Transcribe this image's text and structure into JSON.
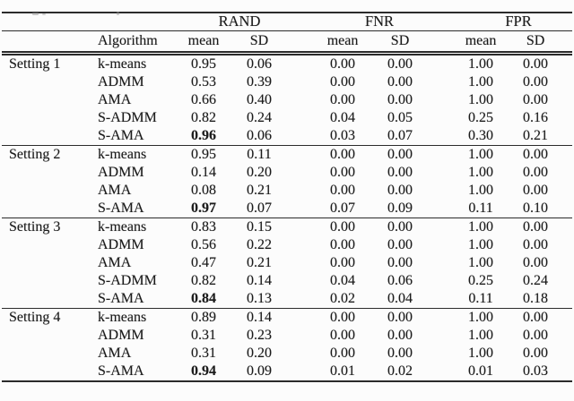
{
  "colors": {
    "background": "#fcfcfc",
    "text": "#1b1b1b",
    "rule": "#2b2b2b"
  },
  "table": {
    "col_groups": [
      {
        "label": "RAND"
      },
      {
        "label": "FNR"
      },
      {
        "label": "FPR"
      }
    ],
    "sub_headers": {
      "algorithm": "Algorithm",
      "mean": "mean",
      "sd": "SD"
    },
    "settings": [
      {
        "label": "Setting 1",
        "rows": [
          {
            "algorithm": "k-means",
            "values": [
              "0.95",
              "0.06",
              "0.00",
              "0.00",
              "1.00",
              "0.00"
            ],
            "bold": []
          },
          {
            "algorithm": "ADMM",
            "values": [
              "0.53",
              "0.39",
              "0.00",
              "0.00",
              "1.00",
              "0.00"
            ],
            "bold": []
          },
          {
            "algorithm": "AMA",
            "values": [
              "0.66",
              "0.40",
              "0.00",
              "0.00",
              "1.00",
              "0.00"
            ],
            "bold": []
          },
          {
            "algorithm": "S-ADMM",
            "values": [
              "0.82",
              "0.24",
              "0.04",
              "0.05",
              "0.25",
              "0.16"
            ],
            "bold": []
          },
          {
            "algorithm": "S-AMA",
            "values": [
              "0.96",
              "0.06",
              "0.03",
              "0.07",
              "0.30",
              "0.21"
            ],
            "bold": [
              0
            ]
          }
        ]
      },
      {
        "label": "Setting 2",
        "rows": [
          {
            "algorithm": "k-means",
            "values": [
              "0.95",
              "0.11",
              "0.00",
              "0.00",
              "1.00",
              "0.00"
            ],
            "bold": []
          },
          {
            "algorithm": "ADMM",
            "values": [
              "0.14",
              "0.20",
              "0.00",
              "0.00",
              "1.00",
              "0.00"
            ],
            "bold": []
          },
          {
            "algorithm": "AMA",
            "values": [
              "0.08",
              "0.21",
              "0.00",
              "0.00",
              "1.00",
              "0.00"
            ],
            "bold": []
          },
          {
            "algorithm": "S-AMA",
            "values": [
              "0.97",
              "0.07",
              "0.07",
              "0.09",
              "0.11",
              "0.10"
            ],
            "bold": [
              0
            ]
          }
        ]
      },
      {
        "label": "Setting 3",
        "rows": [
          {
            "algorithm": "k-means",
            "values": [
              "0.83",
              "0.15",
              "0.00",
              "0.00",
              "1.00",
              "0.00"
            ],
            "bold": []
          },
          {
            "algorithm": "ADMM",
            "values": [
              "0.56",
              "0.22",
              "0.00",
              "0.00",
              "1.00",
              "0.00"
            ],
            "bold": []
          },
          {
            "algorithm": "AMA",
            "values": [
              "0.47",
              "0.21",
              "0.00",
              "0.00",
              "1.00",
              "0.00"
            ],
            "bold": []
          },
          {
            "algorithm": "S-ADMM",
            "values": [
              "0.82",
              "0.14",
              "0.04",
              "0.06",
              "0.25",
              "0.24"
            ],
            "bold": []
          },
          {
            "algorithm": "S-AMA",
            "values": [
              "0.84",
              "0.13",
              "0.02",
              "0.04",
              "0.11",
              "0.18"
            ],
            "bold": [
              0
            ]
          }
        ]
      },
      {
        "label": "Setting 4",
        "rows": [
          {
            "algorithm": "k-means",
            "values": [
              "0.89",
              "0.14",
              "0.00",
              "0.00",
              "1.00",
              "0.00"
            ],
            "bold": []
          },
          {
            "algorithm": "ADMM",
            "values": [
              "0.31",
              "0.23",
              "0.00",
              "0.00",
              "1.00",
              "0.00"
            ],
            "bold": []
          },
          {
            "algorithm": "AMA",
            "values": [
              "0.31",
              "0.20",
              "0.00",
              "0.00",
              "1.00",
              "0.00"
            ],
            "bold": []
          },
          {
            "algorithm": "S-AMA",
            "values": [
              "0.94",
              "0.09",
              "0.01",
              "0.02",
              "0.01",
              "0.03"
            ],
            "bold": [
              0
            ]
          }
        ]
      }
    ]
  }
}
